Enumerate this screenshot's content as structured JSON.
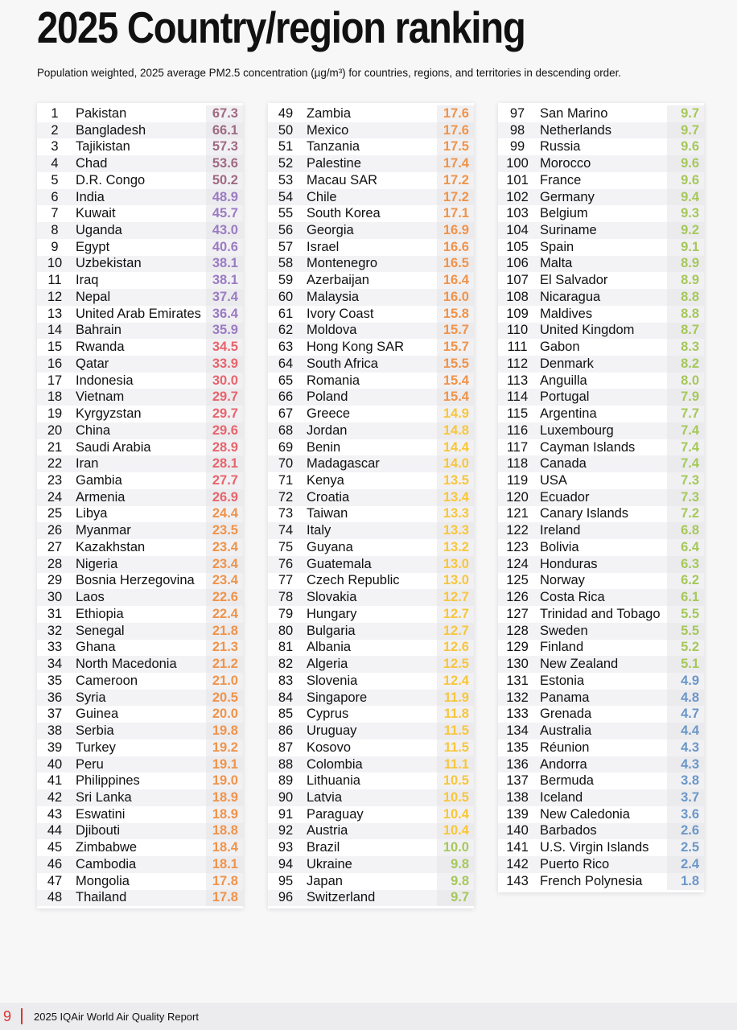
{
  "title": "2025 Country/region ranking",
  "subtitle": "Population weighted, 2025 average PM2.5 concentration (µg/m³) for countries, regions, and territories in descending order.",
  "colors": {
    "maroon": "#a06a80",
    "purple": "#9b7bc3",
    "red": "#e8646c",
    "orange": "#f0934a",
    "yellow": "#f8c63c",
    "green": "#a6c85a",
    "blue": "#6b97c8"
  },
  "rankings": [
    [
      "1",
      "Pakistan",
      "67.3"
    ],
    [
      "2",
      "Bangladesh",
      "66.1"
    ],
    [
      "3",
      "Tajikistan",
      "57.3"
    ],
    [
      "4",
      "Chad",
      "53.6"
    ],
    [
      "5",
      "D.R. Congo",
      "50.2"
    ],
    [
      "6",
      "India",
      "48.9"
    ],
    [
      "7",
      "Kuwait",
      "45.7"
    ],
    [
      "8",
      "Uganda",
      "43.0"
    ],
    [
      "9",
      "Egypt",
      "40.6"
    ],
    [
      "10",
      "Uzbekistan",
      "38.1"
    ],
    [
      "11",
      "Iraq",
      "38.1"
    ],
    [
      "12",
      "Nepal",
      "37.4"
    ],
    [
      "13",
      "United Arab Emirates",
      "36.4"
    ],
    [
      "14",
      "Bahrain",
      "35.9"
    ],
    [
      "15",
      "Rwanda",
      "34.5"
    ],
    [
      "16",
      "Qatar",
      "33.9"
    ],
    [
      "17",
      "Indonesia",
      "30.0"
    ],
    [
      "18",
      "Vietnam",
      "29.7"
    ],
    [
      "19",
      "Kyrgyzstan",
      "29.7"
    ],
    [
      "20",
      "China",
      "29.6"
    ],
    [
      "21",
      "Saudi Arabia",
      "28.9"
    ],
    [
      "22",
      "Iran",
      "28.1"
    ],
    [
      "23",
      "Gambia",
      "27.7"
    ],
    [
      "24",
      "Armenia",
      "26.9"
    ],
    [
      "25",
      "Libya",
      "24.4"
    ],
    [
      "26",
      "Myanmar",
      "23.5"
    ],
    [
      "27",
      "Kazakhstan",
      "23.4"
    ],
    [
      "28",
      "Nigeria",
      "23.4"
    ],
    [
      "29",
      "Bosnia Herzegovina",
      "23.4"
    ],
    [
      "30",
      "Laos",
      "22.6"
    ],
    [
      "31",
      "Ethiopia",
      "22.4"
    ],
    [
      "32",
      "Senegal",
      "21.8"
    ],
    [
      "33",
      "Ghana",
      "21.3"
    ],
    [
      "34",
      "North Macedonia",
      "21.2"
    ],
    [
      "35",
      "Cameroon",
      "21.0"
    ],
    [
      "36",
      "Syria",
      "20.5"
    ],
    [
      "37",
      "Guinea",
      "20.0"
    ],
    [
      "38",
      "Serbia",
      "19.8"
    ],
    [
      "39",
      "Turkey",
      "19.2"
    ],
    [
      "40",
      "Peru",
      "19.1"
    ],
    [
      "41",
      "Philippines",
      "19.0"
    ],
    [
      "42",
      "Sri Lanka",
      "18.9"
    ],
    [
      "43",
      "Eswatini",
      "18.9"
    ],
    [
      "44",
      "Djibouti",
      "18.8"
    ],
    [
      "45",
      "Zimbabwe",
      "18.4"
    ],
    [
      "46",
      "Cambodia",
      "18.1"
    ],
    [
      "47",
      "Mongolia",
      "17.8"
    ],
    [
      "48",
      "Thailand",
      "17.8"
    ],
    [
      "49",
      "Zambia",
      "17.6"
    ],
    [
      "50",
      "Mexico",
      "17.6"
    ],
    [
      "51",
      "Tanzania",
      "17.5"
    ],
    [
      "52",
      "Palestine",
      "17.4"
    ],
    [
      "53",
      "Macau SAR",
      "17.2"
    ],
    [
      "54",
      "Chile",
      "17.2"
    ],
    [
      "55",
      "South Korea",
      "17.1"
    ],
    [
      "56",
      "Georgia",
      "16.9"
    ],
    [
      "57",
      "Israel",
      "16.6"
    ],
    [
      "58",
      "Montenegro",
      "16.5"
    ],
    [
      "59",
      "Azerbaijan",
      "16.4"
    ],
    [
      "60",
      "Malaysia",
      "16.0"
    ],
    [
      "61",
      "Ivory Coast",
      "15.8"
    ],
    [
      "62",
      "Moldova",
      "15.7"
    ],
    [
      "63",
      "Hong Kong SAR",
      "15.7"
    ],
    [
      "64",
      "South Africa",
      "15.5"
    ],
    [
      "65",
      "Romania",
      "15.4"
    ],
    [
      "66",
      "Poland",
      "15.4"
    ],
    [
      "67",
      "Greece",
      "14.9"
    ],
    [
      "68",
      "Jordan",
      "14.8"
    ],
    [
      "69",
      "Benin",
      "14.4"
    ],
    [
      "70",
      "Madagascar",
      "14.0"
    ],
    [
      "71",
      "Kenya",
      "13.5"
    ],
    [
      "72",
      "Croatia",
      "13.4"
    ],
    [
      "73",
      "Taiwan",
      "13.3"
    ],
    [
      "74",
      "Italy",
      "13.3"
    ],
    [
      "75",
      "Guyana",
      "13.2"
    ],
    [
      "76",
      "Guatemala",
      "13.0"
    ],
    [
      "77",
      "Czech Republic",
      "13.0"
    ],
    [
      "78",
      "Slovakia",
      "12.7"
    ],
    [
      "79",
      "Hungary",
      "12.7"
    ],
    [
      "80",
      "Bulgaria",
      "12.7"
    ],
    [
      "81",
      "Albania",
      "12.6"
    ],
    [
      "82",
      "Algeria",
      "12.5"
    ],
    [
      "83",
      "Slovenia",
      "12.4"
    ],
    [
      "84",
      "Singapore",
      "11.9"
    ],
    [
      "85",
      "Cyprus",
      "11.8"
    ],
    [
      "86",
      "Uruguay",
      "11.5"
    ],
    [
      "87",
      "Kosovo",
      "11.5"
    ],
    [
      "88",
      "Colombia",
      "11.1"
    ],
    [
      "89",
      "Lithuania",
      "10.5"
    ],
    [
      "90",
      "Latvia",
      "10.5"
    ],
    [
      "91",
      "Paraguay",
      "10.4"
    ],
    [
      "92",
      "Austria",
      "10.4"
    ],
    [
      "93",
      "Brazil",
      "10.0"
    ],
    [
      "94",
      "Ukraine",
      "9.8"
    ],
    [
      "95",
      "Japan",
      "9.8"
    ],
    [
      "96",
      "Switzerland",
      "9.7"
    ],
    [
      "97",
      "San Marino",
      "9.7"
    ],
    [
      "98",
      "Netherlands",
      "9.7"
    ],
    [
      "99",
      "Russia",
      "9.6"
    ],
    [
      "100",
      "Morocco",
      "9.6"
    ],
    [
      "101",
      "France",
      "9.6"
    ],
    [
      "102",
      "Germany",
      "9.4"
    ],
    [
      "103",
      "Belgium",
      "9.3"
    ],
    [
      "104",
      "Suriname",
      "9.2"
    ],
    [
      "105",
      "Spain",
      "9.1"
    ],
    [
      "106",
      "Malta",
      "8.9"
    ],
    [
      "107",
      "El Salvador",
      "8.9"
    ],
    [
      "108",
      "Nicaragua",
      "8.8"
    ],
    [
      "109",
      "Maldives",
      "8.8"
    ],
    [
      "110",
      "United Kingdom",
      "8.7"
    ],
    [
      "111",
      "Gabon",
      "8.3"
    ],
    [
      "112",
      "Denmark",
      "8.2"
    ],
    [
      "113",
      "Anguilla",
      "8.0"
    ],
    [
      "114",
      "Portugal",
      "7.9"
    ],
    [
      "115",
      "Argentina",
      "7.7"
    ],
    [
      "116",
      "Luxembourg",
      "7.4"
    ],
    [
      "117",
      "Cayman Islands",
      "7.4"
    ],
    [
      "118",
      "Canada",
      "7.4"
    ],
    [
      "119",
      "USA",
      "7.3"
    ],
    [
      "120",
      "Ecuador",
      "7.3"
    ],
    [
      "121",
      "Canary Islands",
      "7.2"
    ],
    [
      "122",
      "Ireland",
      "6.8"
    ],
    [
      "123",
      "Bolivia",
      "6.4"
    ],
    [
      "124",
      "Honduras",
      "6.3"
    ],
    [
      "125",
      "Norway",
      "6.2"
    ],
    [
      "126",
      "Costa Rica",
      "6.1"
    ],
    [
      "127",
      "Trinidad and Tobago",
      "5.5"
    ],
    [
      "128",
      "Sweden",
      "5.5"
    ],
    [
      "129",
      "Finland",
      "5.2"
    ],
    [
      "130",
      "New Zealand",
      "5.1"
    ],
    [
      "131",
      "Estonia",
      "4.9"
    ],
    [
      "132",
      "Panama",
      "4.8"
    ],
    [
      "133",
      "Grenada",
      "4.7"
    ],
    [
      "134",
      "Australia",
      "4.4"
    ],
    [
      "135",
      "Réunion",
      "4.3"
    ],
    [
      "136",
      "Andorra",
      "4.3"
    ],
    [
      "137",
      "Bermuda",
      "3.8"
    ],
    [
      "138",
      "Iceland",
      "3.7"
    ],
    [
      "139",
      "New Caledonia",
      "3.6"
    ],
    [
      "140",
      "Barbados",
      "2.6"
    ],
    [
      "141",
      "U.S. Virgin Islands",
      "2.5"
    ],
    [
      "142",
      "Puerto Rico",
      "2.4"
    ],
    [
      "143",
      "French Polynesia",
      "1.8"
    ]
  ],
  "footer": {
    "page_number": "9",
    "report_title": "2025 IQAir World Air Quality Report"
  }
}
